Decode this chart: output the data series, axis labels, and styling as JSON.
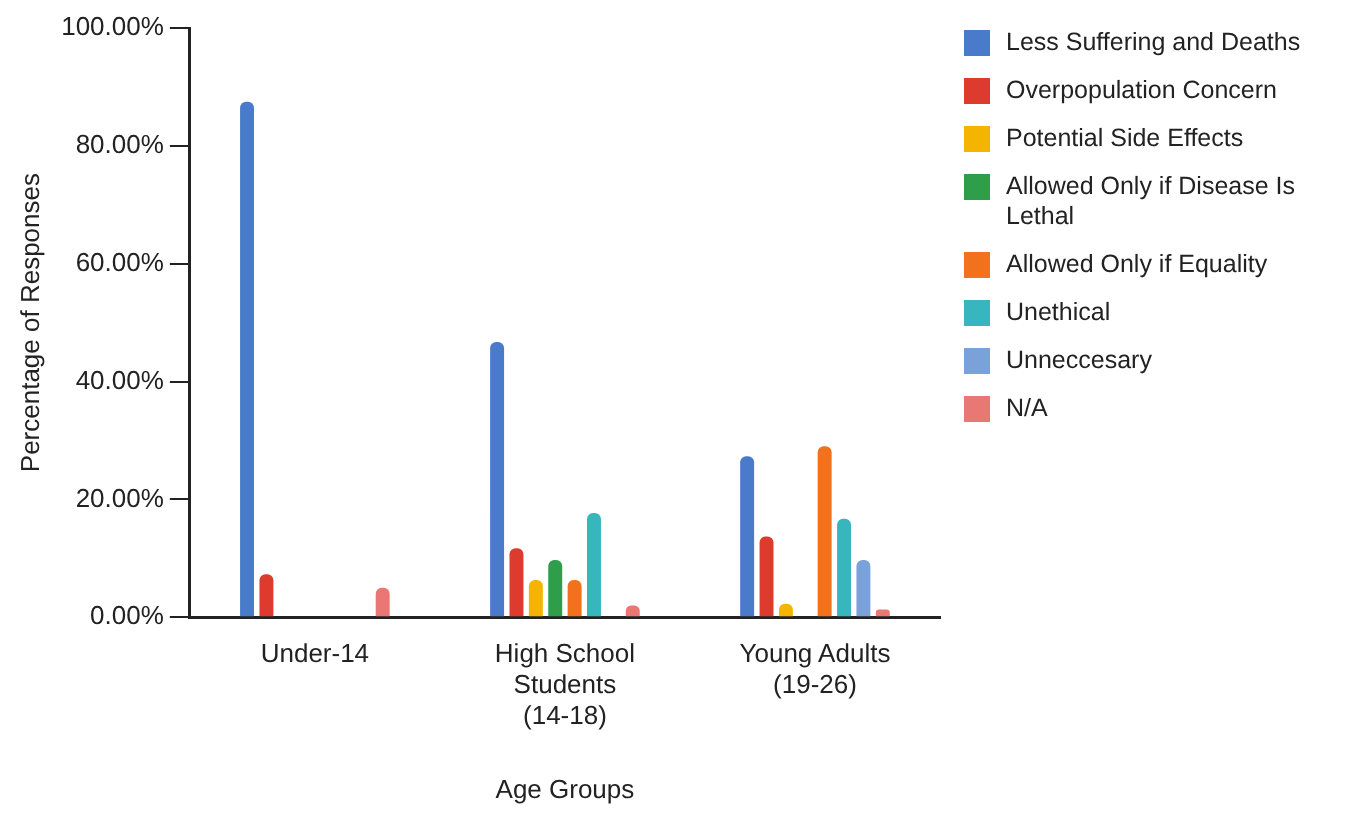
{
  "chart_data": {
    "type": "bar",
    "xlabel": "Age Groups",
    "ylabel": "Percentage of Responses",
    "categories": [
      "Under-14",
      "High School Students (14-18)",
      "Young Adults (19-26)"
    ],
    "series": [
      {
        "name": "Less Suffering and Deaths",
        "color": "#4a7bcb",
        "values": [
          87.5,
          46.7,
          27.3
        ]
      },
      {
        "name": "Overpopulation Concern",
        "color": "#de3b2f",
        "values": [
          7.3,
          11.7,
          13.7
        ]
      },
      {
        "name": "Potential Side Effects",
        "color": "#f4b400",
        "values": [
          0,
          6.3,
          2.3
        ]
      },
      {
        "name": "Allowed Only if Disease Is Lethal",
        "color": "#2e9e4a",
        "values": [
          0,
          9.7,
          0
        ]
      },
      {
        "name": "Allowed Only if Equality",
        "color": "#f2711c",
        "values": [
          0,
          6.3,
          29
        ]
      },
      {
        "name": "Unethical",
        "color": "#38b6be",
        "values": [
          0,
          17.7,
          16.7
        ]
      },
      {
        "name": "Unneccesary",
        "color": "#7ba1da",
        "values": [
          0,
          0,
          9.7
        ]
      },
      {
        "name": "N/A",
        "color": "#e97773",
        "values": [
          5,
          2,
          1.3
        ]
      }
    ],
    "ylim": [
      0,
      100
    ],
    "yticks": [
      {
        "value": 0,
        "label": "0.00%"
      },
      {
        "value": 20,
        "label": "20.00%"
      },
      {
        "value": 40,
        "label": "40.00%"
      },
      {
        "value": 60,
        "label": "60.00%"
      },
      {
        "value": 80,
        "label": "80.00%"
      },
      {
        "value": 100,
        "label": "100.00%"
      }
    ],
    "grid": false,
    "legend": "right"
  }
}
